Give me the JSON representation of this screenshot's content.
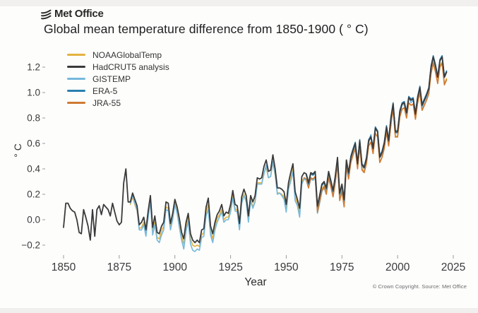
{
  "header": {
    "brand": "Met Office",
    "title": "Global mean temperature difference from 1850-1900 ( ° C)"
  },
  "footer": {
    "copyright": "© Crown Copyright. Source: Met Office"
  },
  "chart_data": {
    "type": "line",
    "title": "Global mean temperature difference from 1850-1900 ( ° C)",
    "xlabel": "Year",
    "ylabel": "° C",
    "xlim": [
      1845,
      2030
    ],
    "ylim": [
      -0.32,
      1.38
    ],
    "x_ticks": [
      1850,
      1875,
      1900,
      1925,
      1950,
      1975,
      2000,
      2025
    ],
    "y_ticks": [
      -0.2,
      0.0,
      0.2,
      0.4,
      0.6,
      0.8,
      1.0,
      1.2
    ],
    "grid": false,
    "legend_position": "top-left",
    "series": [
      {
        "name": "NOAAGlobalTemp",
        "color": "#e3b240",
        "z": 1,
        "start_year": 1880,
        "values": [
          0.12,
          0.18,
          0.12,
          0.07,
          -0.07,
          -0.06,
          -0.02,
          -0.11,
          0.03,
          0.15,
          -0.1,
          -0.02,
          -0.14,
          -0.15,
          -0.09,
          -0.05,
          0.1,
          0.09,
          -0.06,
          0.02,
          0.13,
          0.07,
          -0.03,
          -0.13,
          -0.19,
          -0.06,
          0.02,
          -0.15,
          -0.2,
          -0.21,
          -0.2,
          -0.21,
          -0.12,
          -0.1,
          0.06,
          0.12,
          -0.09,
          -0.15,
          -0.05,
          0.01,
          0.04,
          0.08,
          0.0,
          0.02,
          0.02,
          0.08,
          0.19,
          0.09,
          0.07,
          -0.06,
          0.14,
          0.2,
          0.15,
          0.0,
          0.16,
          0.1,
          0.15,
          0.29,
          0.29,
          0.29,
          0.37,
          0.41,
          0.33,
          0.34,
          0.45,
          0.35,
          0.21,
          0.21,
          0.2,
          0.18,
          0.08,
          0.25,
          0.32,
          0.4,
          0.18,
          0.13,
          0.05,
          0.3,
          0.33,
          0.32,
          0.26,
          0.33,
          0.32,
          0.34,
          0.08,
          0.15,
          0.24,
          0.27,
          0.22,
          0.34,
          0.28,
          0.2,
          0.31,
          0.45,
          0.18,
          0.25,
          0.13,
          0.43,
          0.34,
          0.45,
          0.51,
          0.56,
          0.41,
          0.58,
          0.4,
          0.38,
          0.45,
          0.58,
          0.61,
          0.52,
          0.68,
          0.65,
          0.45,
          0.49,
          0.56,
          0.69,
          0.58,
          0.76,
          0.87,
          0.65,
          0.66,
          0.81,
          0.87,
          0.88,
          0.8,
          0.92,
          0.9,
          0.91,
          0.79,
          0.92,
          1.0,
          0.86,
          0.9,
          0.94,
          0.99,
          1.16,
          1.24,
          1.16,
          1.08,
          1.21,
          1.24,
          1.07,
          1.11
        ]
      },
      {
        "name": "HadCRUT5 analysis",
        "color": "#3a3a3a",
        "z": 5,
        "start_year": 1850,
        "values": [
          -0.06,
          0.13,
          0.13,
          0.09,
          0.07,
          0.06,
          0.0,
          -0.1,
          -0.11,
          0.08,
          0.02,
          -0.05,
          -0.16,
          0.08,
          -0.13,
          0.08,
          0.11,
          0.04,
          0.12,
          0.1,
          0.08,
          0.03,
          0.13,
          0.06,
          -0.01,
          -0.04,
          -0.02,
          0.29,
          0.4,
          0.14,
          0.14,
          0.21,
          0.16,
          0.11,
          -0.04,
          -0.02,
          0.02,
          -0.08,
          0.07,
          0.19,
          -0.06,
          0.03,
          -0.1,
          -0.11,
          -0.05,
          -0.02,
          0.14,
          0.13,
          -0.03,
          0.05,
          0.16,
          0.1,
          0.01,
          -0.1,
          -0.15,
          -0.02,
          0.05,
          -0.11,
          -0.16,
          -0.18,
          -0.16,
          -0.18,
          -0.08,
          -0.07,
          0.1,
          0.17,
          -0.05,
          -0.11,
          -0.02,
          0.04,
          0.07,
          0.12,
          0.03,
          0.06,
          0.05,
          0.12,
          0.23,
          0.12,
          0.11,
          -0.03,
          0.18,
          0.24,
          0.19,
          0.03,
          0.19,
          0.14,
          0.19,
          0.33,
          0.32,
          0.33,
          0.42,
          0.47,
          0.38,
          0.39,
          0.51,
          0.4,
          0.25,
          0.25,
          0.24,
          0.22,
          0.12,
          0.29,
          0.37,
          0.44,
          0.22,
          0.16,
          0.09,
          0.34,
          0.37,
          0.36,
          0.29,
          0.37,
          0.36,
          0.38,
          0.11,
          0.19,
          0.28,
          0.3,
          0.25,
          0.38,
          0.31,
          0.23,
          0.34,
          0.49,
          0.21,
          0.28,
          0.16,
          0.47,
          0.37,
          0.49,
          0.55,
          0.6,
          0.44,
          0.62,
          0.43,
          0.41,
          0.48,
          0.62,
          0.65,
          0.56,
          0.72,
          0.69,
          0.49,
          0.53,
          0.6,
          0.73,
          0.62,
          0.8,
          0.91,
          0.69,
          0.69,
          0.85,
          0.91,
          0.92,
          0.84,
          0.96,
          0.94,
          0.95,
          0.83,
          0.96,
          1.04,
          0.9,
          0.94,
          0.98,
          1.03,
          1.2,
          1.28,
          1.21,
          1.12,
          1.25,
          1.28,
          1.12,
          1.16
        ]
      },
      {
        "name": "GISTEMP",
        "color": "#76b8dc",
        "z": 2,
        "start_year": 1880,
        "values": [
          0.13,
          0.19,
          0.13,
          0.08,
          -0.08,
          -0.08,
          -0.04,
          -0.13,
          0.02,
          0.14,
          -0.12,
          -0.04,
          -0.16,
          -0.18,
          -0.12,
          -0.08,
          0.08,
          0.07,
          -0.08,
          0.0,
          0.12,
          0.05,
          -0.06,
          -0.16,
          -0.23,
          -0.09,
          -0.01,
          -0.19,
          -0.24,
          -0.25,
          -0.23,
          -0.24,
          -0.14,
          -0.13,
          0.03,
          0.08,
          -0.12,
          -0.18,
          -0.08,
          -0.02,
          0.02,
          0.06,
          -0.02,
          0.0,
          0.0,
          0.06,
          0.17,
          0.07,
          0.06,
          -0.08,
          0.13,
          0.19,
          0.14,
          -0.02,
          0.15,
          0.09,
          0.14,
          0.28,
          0.28,
          0.28,
          0.36,
          0.43,
          0.33,
          0.34,
          0.46,
          0.36,
          0.2,
          0.21,
          0.19,
          0.16,
          0.06,
          0.24,
          0.3,
          0.38,
          0.15,
          0.11,
          0.02,
          0.28,
          0.32,
          0.31,
          0.25,
          0.32,
          0.31,
          0.33,
          0.05,
          0.13,
          0.22,
          0.25,
          0.2,
          0.33,
          0.27,
          0.18,
          0.29,
          0.44,
          0.16,
          0.23,
          0.11,
          0.44,
          0.34,
          0.45,
          0.53,
          0.59,
          0.41,
          0.59,
          0.42,
          0.4,
          0.46,
          0.6,
          0.67,
          0.54,
          0.71,
          0.7,
          0.49,
          0.51,
          0.58,
          0.72,
          0.61,
          0.74,
          0.9,
          0.68,
          0.68,
          0.82,
          0.91,
          0.9,
          0.82,
          0.96,
          0.92,
          0.94,
          0.82,
          0.94,
          1.01,
          0.88,
          0.93,
          0.96,
          1.02,
          1.17,
          1.28,
          1.19,
          1.12,
          1.26,
          1.29,
          1.12,
          1.17
        ]
      },
      {
        "name": "ERA-5",
        "color": "#2a7fae",
        "z": 4,
        "start_year": 1959,
        "values": [
          0.35,
          0.28,
          0.36,
          0.35,
          0.37,
          0.1,
          0.18,
          0.27,
          0.29,
          0.24,
          0.37,
          0.3,
          0.22,
          0.33,
          0.48,
          0.2,
          0.27,
          0.15,
          0.46,
          0.36,
          0.5,
          0.56,
          0.61,
          0.45,
          0.63,
          0.44,
          0.42,
          0.49,
          0.63,
          0.66,
          0.57,
          0.73,
          0.7,
          0.5,
          0.54,
          0.61,
          0.74,
          0.63,
          0.81,
          0.92,
          0.7,
          0.7,
          0.86,
          0.92,
          0.93,
          0.85,
          0.97,
          0.95,
          0.96,
          0.84,
          0.97,
          1.05,
          0.91,
          0.95,
          0.99,
          1.04,
          1.21,
          1.29,
          1.22,
          1.13,
          1.26,
          1.29,
          1.13,
          1.17
        ]
      },
      {
        "name": "JRA-55",
        "color": "#cf7a33",
        "z": 3,
        "start_year": 1958,
        "values": [
          0.33,
          0.32,
          0.25,
          0.33,
          0.32,
          0.34,
          0.06,
          0.14,
          0.23,
          0.26,
          0.2,
          0.33,
          0.26,
          0.18,
          0.29,
          0.44,
          0.15,
          0.22,
          0.1,
          0.42,
          0.32,
          0.45,
          0.51,
          0.56,
          0.4,
          0.58,
          0.39,
          0.37,
          0.44,
          0.58,
          0.61,
          0.52,
          0.68,
          0.65,
          0.45,
          0.49,
          0.56,
          0.69,
          0.58,
          0.76,
          0.87,
          0.65,
          0.65,
          0.81,
          0.87,
          0.88,
          0.8,
          0.92,
          0.9,
          0.91,
          0.79,
          0.92,
          1.0,
          0.86,
          0.9,
          0.94,
          0.99,
          1.15,
          1.23,
          1.16,
          1.07,
          1.2,
          1.23,
          1.06,
          1.1
        ]
      }
    ]
  }
}
